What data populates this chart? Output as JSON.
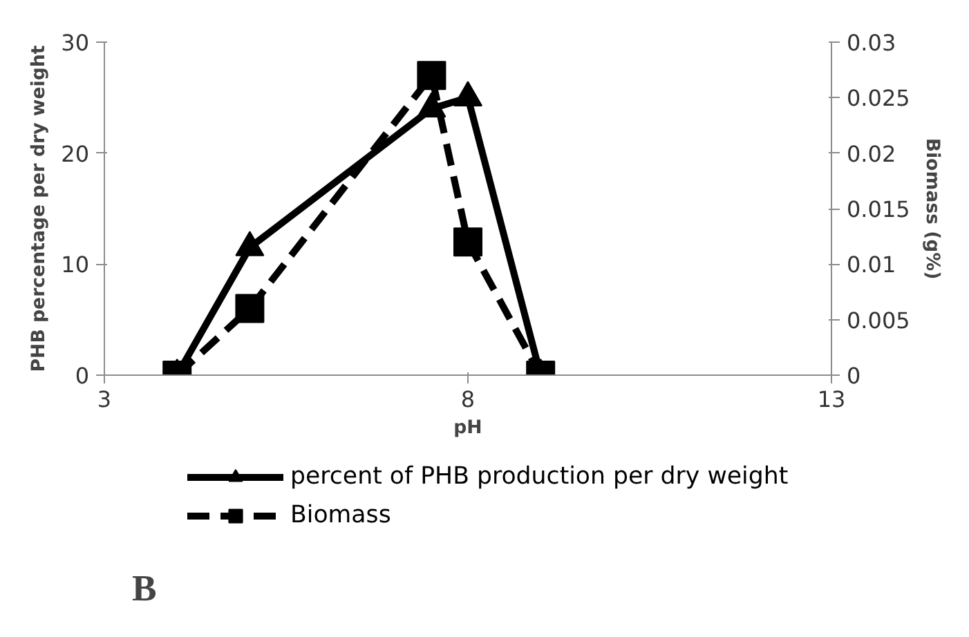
{
  "chart_data": {
    "type": "line",
    "xlabel": "pH",
    "ylabel": "PHB percentage per dry weight",
    "y2label": "Biomass (g%)",
    "x": [
      4,
      5,
      7.5,
      8,
      9
    ],
    "series": [
      {
        "name": "percent of PHB production per dry weight",
        "color": "#000000",
        "marker": "triangle",
        "line_style": "solid",
        "values": [
          0,
          11.5,
          24,
          25,
          0
        ]
      },
      {
        "name": "Biomass",
        "color": "#000000",
        "marker": "square",
        "line_style": "dashed",
        "axis": "y2",
        "values": [
          0,
          0.006,
          0.027,
          0.012,
          0
        ]
      }
    ],
    "xlim": [
      3,
      13
    ],
    "xticks": [
      3,
      8,
      13
    ],
    "ylim": [
      0,
      30
    ],
    "yticks": [
      0,
      10,
      20,
      30
    ],
    "y2lim": [
      0,
      0.03
    ],
    "y2ticks": [
      0,
      0.005,
      0.01,
      0.015,
      0.02,
      0.025,
      0.03
    ],
    "grid": false,
    "legend": "bottom",
    "annotations": [
      "B"
    ]
  }
}
